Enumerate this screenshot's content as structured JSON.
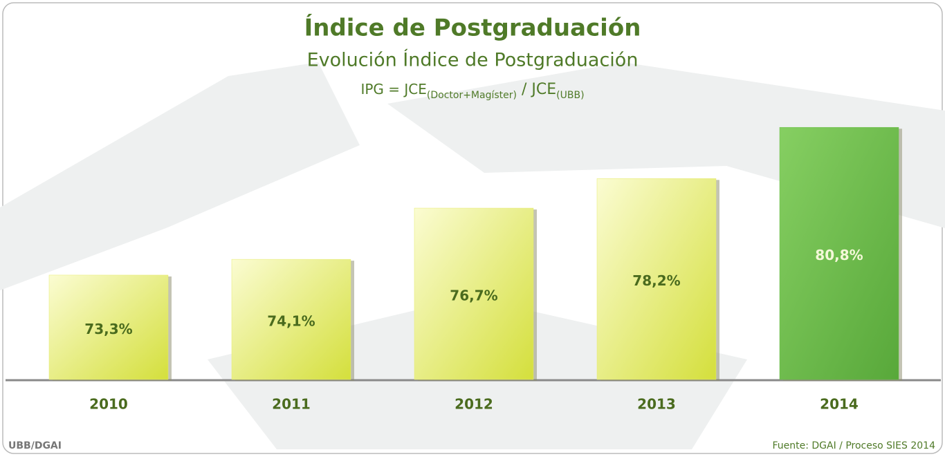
{
  "chart_data": {
    "type": "bar",
    "title": "Índice de Postgraduación",
    "subtitle": "Evolución Índice de Postgraduación",
    "formula": {
      "lhs": "IPG = JCE",
      "sub1": "(Doctor+Magíster)",
      "mid": " / JCE",
      "sub2": "(UBB)"
    },
    "categories": [
      "2010",
      "2011",
      "2012",
      "2013",
      "2014"
    ],
    "values": [
      73.3,
      74.1,
      76.7,
      78.2,
      80.8
    ],
    "value_labels": [
      "73,3%",
      "74,1%",
      "76,7%",
      "78,2%",
      "80,8%"
    ],
    "colors": [
      "#e6ec6e",
      "#e6ec6e",
      "#e6ec6e",
      "#e6ec6e",
      "#6cbf4a"
    ],
    "ylim": [
      68,
      82
    ],
    "footer_left": "UBB/DGAI",
    "source": "Fuente: DGAI / Proceso SIES 2014"
  }
}
